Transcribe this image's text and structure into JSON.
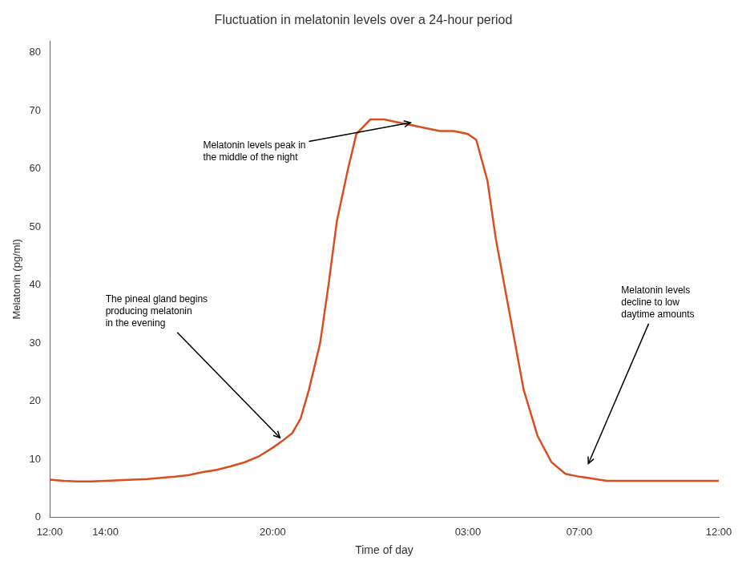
{
  "chart_data": {
    "type": "line",
    "title": "Fluctuation in melatonin levels over a 24-hour period",
    "x_label": "Time of day",
    "y_label": "Melatonin (pg/ml)",
    "color": "#d94e1f",
    "x": [
      0,
      0.5,
      1,
      1.5,
      2,
      2.5,
      3,
      3.5,
      4,
      4.5,
      5,
      5.5,
      6,
      6.5,
      7,
      7.5,
      8,
      8.3,
      8.7,
      9.0,
      9.3,
      9.7,
      10.0,
      10.3,
      10.7,
      11.0,
      11.5,
      12.0,
      12.5,
      13.0,
      13.5,
      14.0,
      14.5,
      15.0,
      15.3,
      15.7,
      16.0,
      16.5,
      17.0,
      17.5,
      18.0,
      18.5,
      19.0,
      19.3,
      19.7,
      20.0,
      21.0,
      22.0,
      23.0,
      24.0
    ],
    "values": [
      6.5,
      6.3,
      6.2,
      6.2,
      6.3,
      6.4,
      6.5,
      6.6,
      6.8,
      7.0,
      7.3,
      7.8,
      8.2,
      8.8,
      9.5,
      10.5,
      12.0,
      13.0,
      14.5,
      17.0,
      22.0,
      30.0,
      40.0,
      51.0,
      60.0,
      66.0,
      68.5,
      68.5,
      68.0,
      67.5,
      67.0,
      66.5,
      66.5,
      66.0,
      65.0,
      58.0,
      48.0,
      35.0,
      22.0,
      14.0,
      9.5,
      7.5,
      7.0,
      6.8,
      6.5,
      6.3,
      6.3,
      6.3,
      6.3,
      6.3
    ],
    "xlim": [
      0,
      24
    ],
    "xticks": [
      {
        "value": 0,
        "label": "12:00"
      },
      {
        "value": 2,
        "label": "14:00"
      },
      {
        "value": 8,
        "label": "20:00"
      },
      {
        "value": 15,
        "label": "03:00"
      },
      {
        "value": 19,
        "label": "07:00"
      },
      {
        "value": 24,
        "label": "12:00"
      }
    ],
    "ylim": [
      0,
      82
    ],
    "yticks": [
      0,
      10,
      20,
      30,
      40,
      50,
      60,
      70,
      80
    ],
    "grid": false,
    "annotations": [
      {
        "text": "Melatonin levels peak in\nthe middle of the night",
        "xy": [
          13.0,
          68.0
        ],
        "xytext": [
          5.5,
          63.0
        ]
      },
      {
        "text": "The pineal gland begins\nproducing melatonin\nin the evening",
        "xy": [
          8.3,
          13.5
        ],
        "xytext": [
          2.0,
          35.5
        ]
      },
      {
        "text": "Melatonin levels\ndecline to low\ndaytime amounts",
        "xy": [
          19.3,
          9.0
        ],
        "xytext": [
          20.5,
          37.0
        ]
      }
    ]
  }
}
